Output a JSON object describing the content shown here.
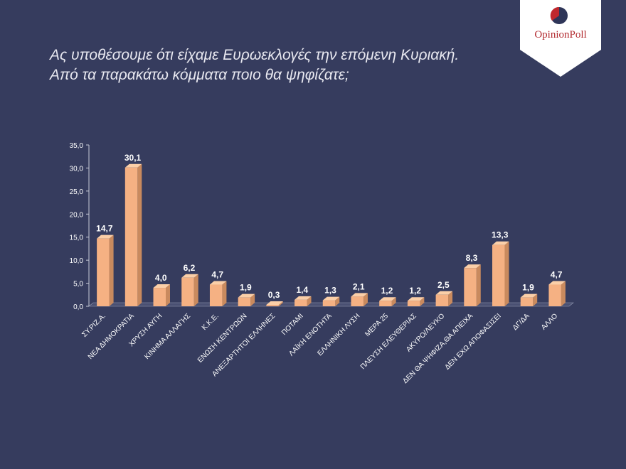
{
  "logo": "OpinionPoll",
  "chart_data": {
    "type": "bar3d",
    "title": "Ας υποθέσουμε ότι είχαμε Ευρωεκλογές την επόμενη Κυριακή.",
    "subtitle": "Από τα παρακάτω κόμματα ποιο θα ψηφίζατε;",
    "categories": [
      "ΣΥ.ΡΙΖ.Α.",
      "ΝΕΑ ΔΗΜΟΚΡΑΤΙΑ",
      "ΧΡΥΣΗ ΑΥΓΗ",
      "ΚΙΝΗΜΑ ΑΛΛΑΓΗΣ",
      "Κ.Κ.Ε.",
      "ΕΝΩΣΗ ΚΕΝΤΡΩΩΝ",
      "ΑΝΕΞΑΡΤΗΤΟΙ ΕΛΛΗΝΕΣ",
      "ΠΟΤΑΜΙ",
      "ΛΑΪΚΗ ΕΝΟΤΗΤΑ",
      "ΕΛΛΗΝΙΚΗ ΛΥΣΗ",
      "ΜΕΡΑ 25",
      "ΠΛΕΥΣΗ ΕΛΕΥΘΕΡΙΑΣ",
      "ΑΚΥΡΟ/ΛΕΥΚΟ",
      "ΔΕΝ ΘΑ ΨΗΦΙΖΑ,ΘΑ ΑΠΕΙΧΑ",
      "ΔΕΝ ΕΧΩ ΑΠΟΦΑΣΙΣΕΙ",
      "ΔΓ/ΔΑ",
      "ΑΛΛΟ"
    ],
    "values": [
      14.7,
      30.1,
      4.0,
      6.2,
      4.7,
      1.9,
      0.3,
      1.4,
      1.3,
      2.1,
      1.2,
      1.2,
      2.5,
      8.3,
      13.3,
      1.9,
      4.7
    ],
    "value_labels": [
      "14,7",
      "30,1",
      "4,0",
      "6,2",
      "4,7",
      "1,9",
      "0,3",
      "1,4",
      "1,3",
      "2,1",
      "1,2",
      "1,2",
      "2,5",
      "8,3",
      "13,3",
      "1,9",
      "4,7"
    ],
    "color": "#f5b183",
    "ylim": [
      0,
      35
    ],
    "yticks": [
      {
        "value": 0,
        "label": "0,0"
      },
      {
        "value": 5,
        "label": "5,0"
      },
      {
        "value": 10,
        "label": "10,0"
      },
      {
        "value": 15,
        "label": "15,0"
      },
      {
        "value": 20,
        "label": "20,0"
      },
      {
        "value": 25,
        "label": "25,0"
      },
      {
        "value": 30,
        "label": "30,0"
      },
      {
        "value": 35,
        "label": "35,0"
      }
    ]
  }
}
